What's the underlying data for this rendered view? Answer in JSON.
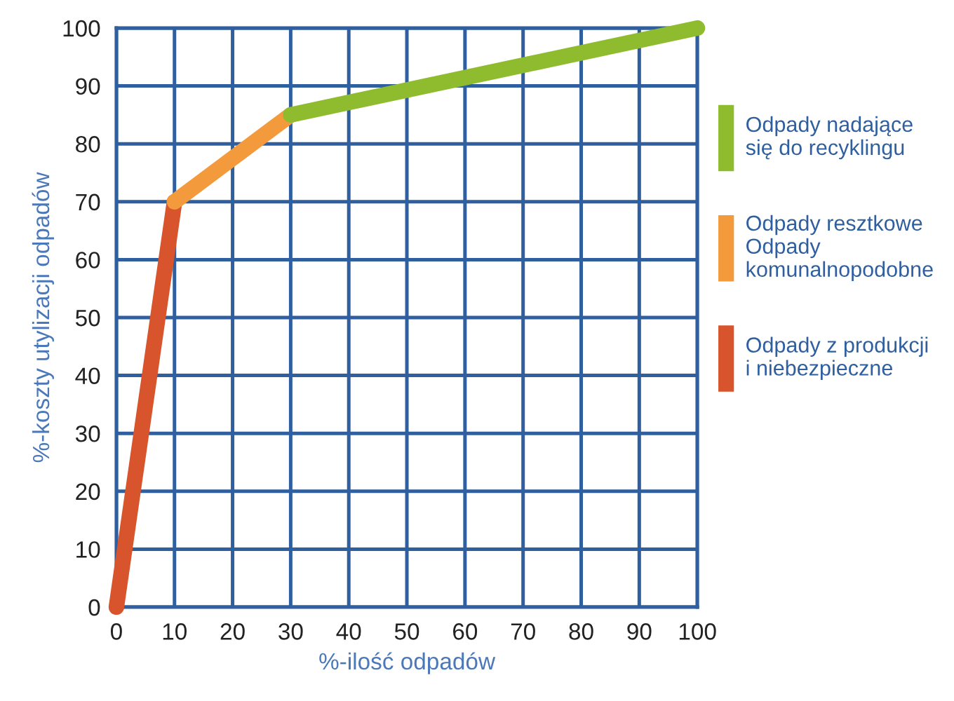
{
  "chart_data": {
    "type": "line",
    "xlabel": "%-ilość odpadów",
    "ylabel": "%-koszty utylizacji odpadów",
    "xlim": [
      0,
      100
    ],
    "ylim": [
      0,
      100
    ],
    "xticks": [
      0,
      10,
      20,
      30,
      40,
      50,
      60,
      70,
      80,
      90,
      100
    ],
    "yticks": [
      0,
      10,
      20,
      30,
      40,
      50,
      60,
      70,
      80,
      90,
      100
    ],
    "grid": true,
    "legend": "right",
    "line_style": "solid",
    "series": [
      {
        "name": "Odpady nadające\nsię do recyklingu",
        "color": "#8fbc2f",
        "x": [
          30,
          100
        ],
        "values": [
          85,
          100
        ]
      },
      {
        "name": "Odpady resztkowe\nOdpady\nkomunalnopodobne",
        "color": "#f39b3c",
        "x": [
          10,
          30
        ],
        "values": [
          70,
          85
        ]
      },
      {
        "name": "Odpady z produkcji\ni niebezpieczne",
        "color": "#d8542c",
        "x": [
          0,
          10
        ],
        "values": [
          0,
          70
        ]
      }
    ]
  }
}
